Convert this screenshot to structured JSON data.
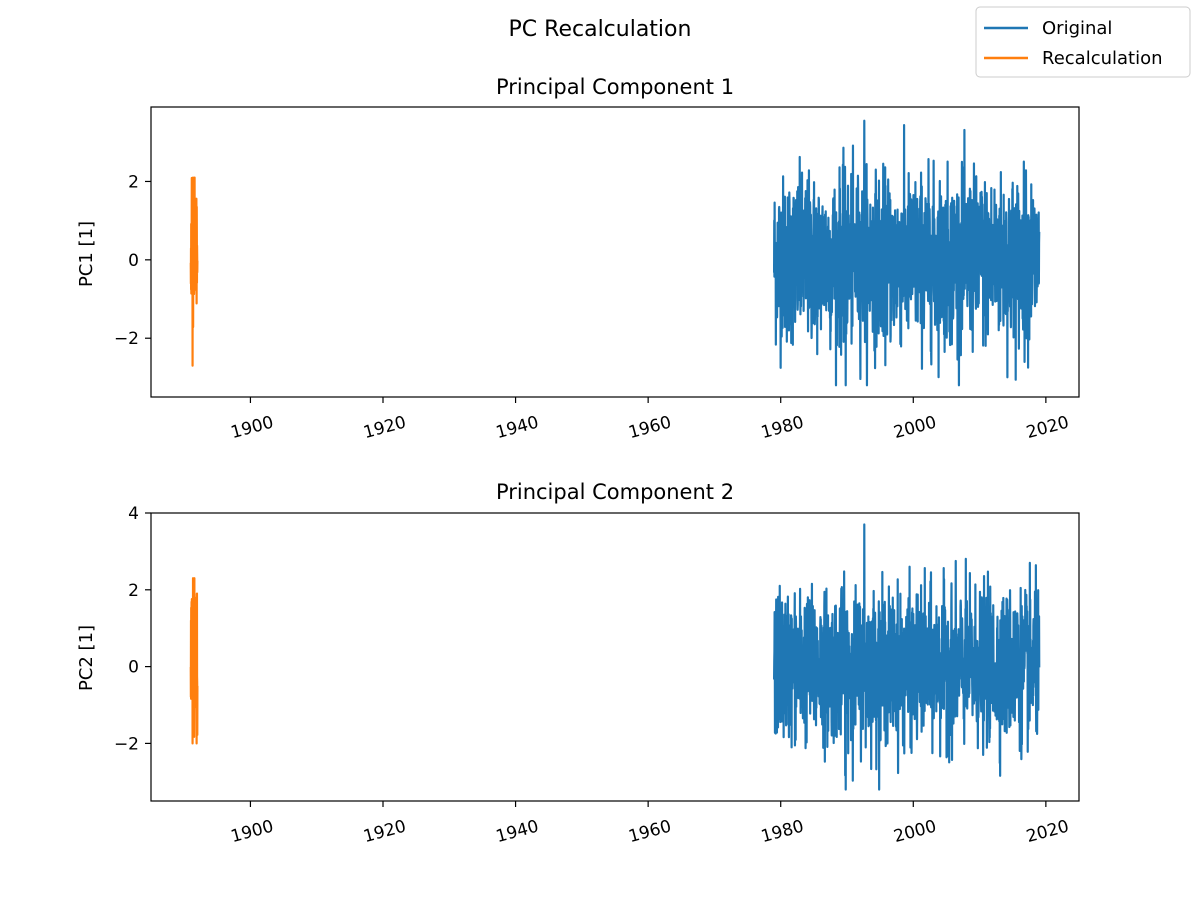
{
  "figure_title": "PC Recalculation",
  "colors": {
    "original": "#1f77b4",
    "recalculation": "#ff7f0e"
  },
  "chart_data": [
    {
      "type": "line",
      "title": "Principal Component 1",
      "xlabel": "",
      "ylabel": "PC1 [1]",
      "xlim": [
        1885,
        2025
      ],
      "ylim": [
        -3.5,
        3.9
      ],
      "x_ticks": [
        "1900",
        "1920",
        "1940",
        "1960",
        "1980",
        "2000",
        "2020"
      ],
      "y_ticks": [
        "2",
        "0",
        "−2"
      ],
      "legend": {
        "placement": "top-right",
        "entries": [
          "Original",
          "Recalculation"
        ]
      },
      "series": [
        {
          "name": "Original",
          "color": "#1f77b4",
          "x_range": [
            1979,
            2019
          ],
          "typical_range": [
            -2.0,
            2.0
          ],
          "max": 3.55,
          "min": -3.2
        },
        {
          "name": "Recalculation",
          "color": "#ff7f0e",
          "x_range": [
            1891,
            1892
          ],
          "typical_range": [
            -1.8,
            1.6
          ],
          "max": 2.1,
          "min": -2.7
        }
      ]
    },
    {
      "type": "line",
      "title": "Principal Component 2",
      "xlabel": "",
      "ylabel": "PC2 [1]",
      "xlim": [
        1885,
        2025
      ],
      "ylim": [
        -3.5,
        4.0
      ],
      "x_ticks": [
        "1900",
        "1920",
        "1940",
        "1960",
        "1980",
        "2000",
        "2020"
      ],
      "y_ticks": [
        "4",
        "2",
        "0",
        "−2"
      ],
      "series": [
        {
          "name": "Original",
          "color": "#1f77b4",
          "x_range": [
            1979,
            2019
          ],
          "typical_range": [
            -1.8,
            1.8
          ],
          "max": 3.7,
          "min": -3.2
        },
        {
          "name": "Recalculation",
          "color": "#ff7f0e",
          "x_range": [
            1891,
            1892
          ],
          "typical_range": [
            -1.8,
            1.8
          ],
          "max": 2.3,
          "min": -2.0
        }
      ]
    }
  ]
}
